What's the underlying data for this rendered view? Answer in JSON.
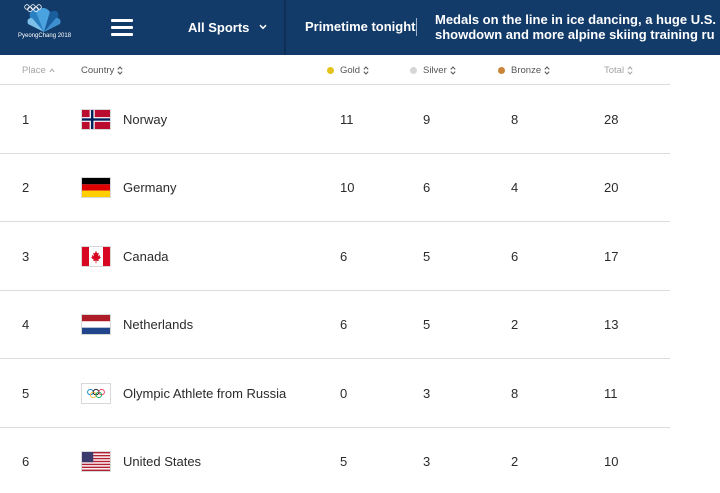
{
  "header": {
    "logo_text": "PyeongChang 2018",
    "nav_label": "All Sports",
    "primetime_label": "Primetime tonight",
    "headline_line1": "Medals on the line in ice dancing, a huge U.S.",
    "headline_line2": "showdown and more alpine skiing training ru"
  },
  "table": {
    "columns": {
      "place": "Place",
      "country": "Country",
      "gold": "Gold",
      "silver": "Silver",
      "bronze": "Bronze",
      "total": "Total"
    },
    "colors": {
      "gold": "#e5c21a",
      "silver": "#d6d6d6",
      "bronze": "#c98437"
    },
    "rows": [
      {
        "place": "1",
        "country": "Norway",
        "flag": "norway-flag",
        "gold": "11",
        "silver": "9",
        "bronze": "8",
        "total": "28"
      },
      {
        "place": "2",
        "country": "Germany",
        "flag": "germany-flag",
        "gold": "10",
        "silver": "6",
        "bronze": "4",
        "total": "20"
      },
      {
        "place": "3",
        "country": "Canada",
        "flag": "canada-flag",
        "gold": "6",
        "silver": "5",
        "bronze": "6",
        "total": "17"
      },
      {
        "place": "4",
        "country": "Netherlands",
        "flag": "netherlands-flag",
        "gold": "6",
        "silver": "5",
        "bronze": "2",
        "total": "13"
      },
      {
        "place": "5",
        "country": "Olympic Athlete from Russia",
        "flag": "olympic-rings-flag",
        "gold": "0",
        "silver": "3",
        "bronze": "8",
        "total": "11"
      },
      {
        "place": "6",
        "country": "United States",
        "flag": "usa-flag",
        "gold": "5",
        "silver": "3",
        "bronze": "2",
        "total": "10"
      }
    ]
  }
}
